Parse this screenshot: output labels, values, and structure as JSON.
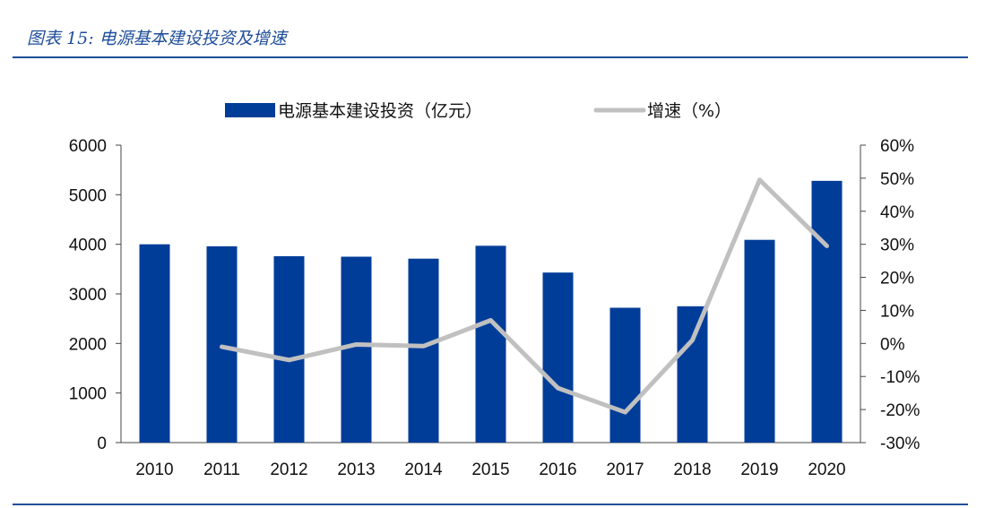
{
  "header": {
    "figure_title": "图表 15:  电源基本建设投资及增速"
  },
  "colors": {
    "bar": "#003d99",
    "line": "#c0c0c0",
    "rule": "#1f4e9a"
  },
  "chart_data": {
    "type": "bar",
    "title": "",
    "categories": [
      "2010",
      "2011",
      "2012",
      "2013",
      "2014",
      "2015",
      "2016",
      "2017",
      "2018",
      "2019",
      "2020"
    ],
    "series": [
      {
        "name": "电源基本建设投资（亿元）",
        "type": "bar",
        "axis": "left",
        "values": [
          4000,
          3960,
          3760,
          3750,
          3710,
          3970,
          3430,
          2720,
          2750,
          4090,
          5280
        ]
      },
      {
        "name": "增速（%）",
        "type": "line",
        "axis": "right",
        "values": [
          null,
          -1,
          -5,
          -0.3,
          -0.8,
          7,
          -13.5,
          -20.8,
          1,
          49.5,
          29.5
        ]
      }
    ],
    "left_axis": {
      "ylim": [
        0,
        6000
      ],
      "ticks": [
        "0",
        "1000",
        "2000",
        "3000",
        "4000",
        "5000",
        "6000"
      ]
    },
    "right_axis": {
      "ylim": [
        -30,
        60
      ],
      "ticks": [
        "-30%",
        "-20%",
        "-10%",
        "0%",
        "10%",
        "20%",
        "30%",
        "40%",
        "50%",
        "60%"
      ]
    },
    "legend": {
      "position": "top-center"
    }
  }
}
